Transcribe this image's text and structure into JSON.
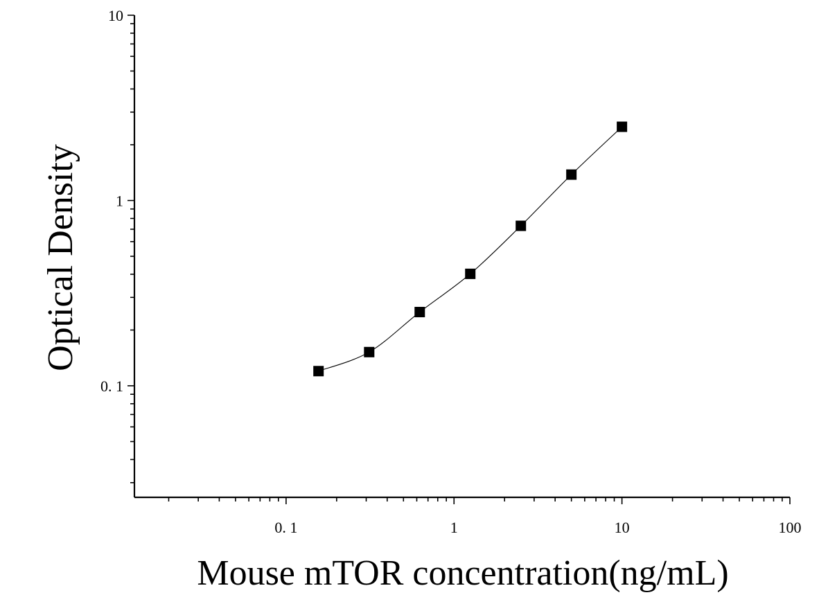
{
  "chart_data": {
    "type": "scatter",
    "title": "",
    "xlabel": "Mouse mTOR concentration(ng/mL)",
    "ylabel": "Optical Density",
    "xscale": "log",
    "yscale": "log",
    "xlim": [
      0.0125,
      100
    ],
    "ylim": [
      0.025,
      10
    ],
    "xticks": [
      {
        "value": 0.1,
        "label": "0. 1"
      },
      {
        "value": 1,
        "label": "1"
      },
      {
        "value": 10,
        "label": "10"
      },
      {
        "value": 100,
        "label": "100"
      }
    ],
    "yticks": [
      {
        "value": 0.1,
        "label": "0. 1"
      },
      {
        "value": 1,
        "label": "1"
      },
      {
        "value": 10,
        "label": "10"
      }
    ],
    "grid": false,
    "legend": "none",
    "marker": "square",
    "series": [
      {
        "x": [
          0.156,
          0.3125,
          0.625,
          1.25,
          2.5,
          5,
          10
        ],
        "y": [
          0.12,
          0.152,
          0.25,
          0.402,
          0.73,
          1.38,
          2.5
        ],
        "fit_curve": true
      }
    ],
    "colors": {
      "marker": "#000000",
      "curve": "#000000",
      "axis": "#000000"
    }
  }
}
